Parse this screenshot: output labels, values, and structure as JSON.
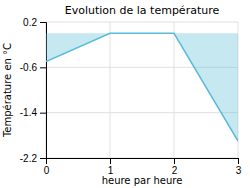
{
  "chart_data": {
    "type": "area",
    "title": "Evolution de la température",
    "xlabel": "heure par heure",
    "ylabel": "Température en °C",
    "x": [
      0,
      1,
      2,
      3
    ],
    "values": [
      -0.5,
      0.0,
      0.0,
      -1.9
    ],
    "color": "#5abcd8",
    "xlim": [
      0,
      3
    ],
    "ylim": [
      -2.2,
      0.2
    ],
    "xticks": [
      0,
      1,
      2,
      3
    ],
    "yticks": [
      0.2,
      -0.6,
      -1.4,
      -2.2
    ],
    "grid": true
  }
}
